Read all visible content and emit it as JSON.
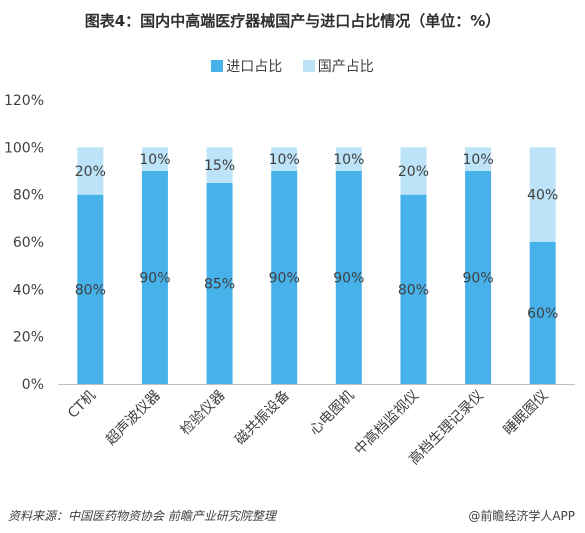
{
  "chart_data": {
    "type": "bar",
    "stacked": true,
    "title": "图表4：国内中高端医疗器械国产与进口占比情况（单位：%）",
    "categories": [
      "CT机",
      "超声波仪器",
      "检验仪器",
      "磁共振设备",
      "心电图机",
      "中高档监视仪",
      "高档生理记录仪",
      "睡眠图仪"
    ],
    "series": [
      {
        "name": "进口占比",
        "values": [
          80,
          90,
          85,
          90,
          90,
          80,
          90,
          60
        ],
        "labels": [
          "80%",
          "90%",
          "85%",
          "90%",
          "90%",
          "80%",
          "90%",
          "60%"
        ],
        "color": "#47b1ea"
      },
      {
        "name": "国产占比",
        "values": [
          20,
          10,
          15,
          10,
          10,
          20,
          10,
          40
        ],
        "labels": [
          "20%",
          "10%",
          "15%",
          "10%",
          "10%",
          "20%",
          "10%",
          "40%"
        ],
        "color": "#bde3f8"
      }
    ],
    "ylim": [
      0,
      120
    ],
    "yticks": [
      0,
      20,
      40,
      60,
      80,
      100,
      120
    ],
    "yticklabels": [
      "0%",
      "20%",
      "40%",
      "60%",
      "80%",
      "100%",
      "120%"
    ],
    "xlabel": "",
    "ylabel": "",
    "grid": false,
    "legend_position": "top"
  },
  "footer": {
    "source": "资料来源：中国医药物资协会 前瞻产业研究院整理",
    "brand": "@前瞻经济学人APP"
  }
}
